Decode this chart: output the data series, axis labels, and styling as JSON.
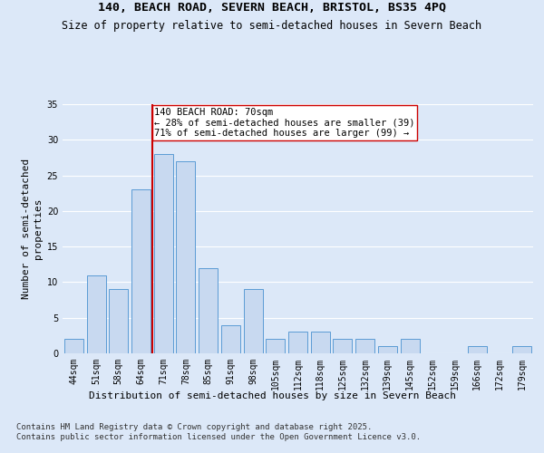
{
  "title1": "140, BEACH ROAD, SEVERN BEACH, BRISTOL, BS35 4PQ",
  "title2": "Size of property relative to semi-detached houses in Severn Beach",
  "xlabel": "Distribution of semi-detached houses by size in Severn Beach",
  "ylabel": "Number of semi-detached\nproperties",
  "footnote": "Contains HM Land Registry data © Crown copyright and database right 2025.\nContains public sector information licensed under the Open Government Licence v3.0.",
  "categories": [
    "44sqm",
    "51sqm",
    "58sqm",
    "64sqm",
    "71sqm",
    "78sqm",
    "85sqm",
    "91sqm",
    "98sqm",
    "105sqm",
    "112sqm",
    "118sqm",
    "125sqm",
    "132sqm",
    "139sqm",
    "145sqm",
    "152sqm",
    "159sqm",
    "166sqm",
    "172sqm",
    "179sqm"
  ],
  "values": [
    2,
    11,
    9,
    23,
    28,
    27,
    12,
    4,
    9,
    2,
    3,
    3,
    2,
    2,
    1,
    2,
    0,
    0,
    1,
    0,
    1
  ],
  "bar_color": "#c8d9f0",
  "bar_edge_color": "#5b9bd5",
  "vline_color": "#cc0000",
  "annotation_text": "140 BEACH ROAD: 70sqm\n← 28% of semi-detached houses are smaller (39)\n71% of semi-detached houses are larger (99) →",
  "annotation_box_color": "#ffffff",
  "annotation_box_edge": "#cc0000",
  "ylim": [
    0,
    35
  ],
  "yticks": [
    0,
    5,
    10,
    15,
    20,
    25,
    30,
    35
  ],
  "background_color": "#dce8f8",
  "plot_background": "#dce8f8",
  "grid_color": "#ffffff",
  "title_fontsize": 9.5,
  "subtitle_fontsize": 8.5,
  "label_fontsize": 8,
  "tick_fontsize": 7,
  "annotation_fontsize": 7.5,
  "footnote_fontsize": 6.5
}
